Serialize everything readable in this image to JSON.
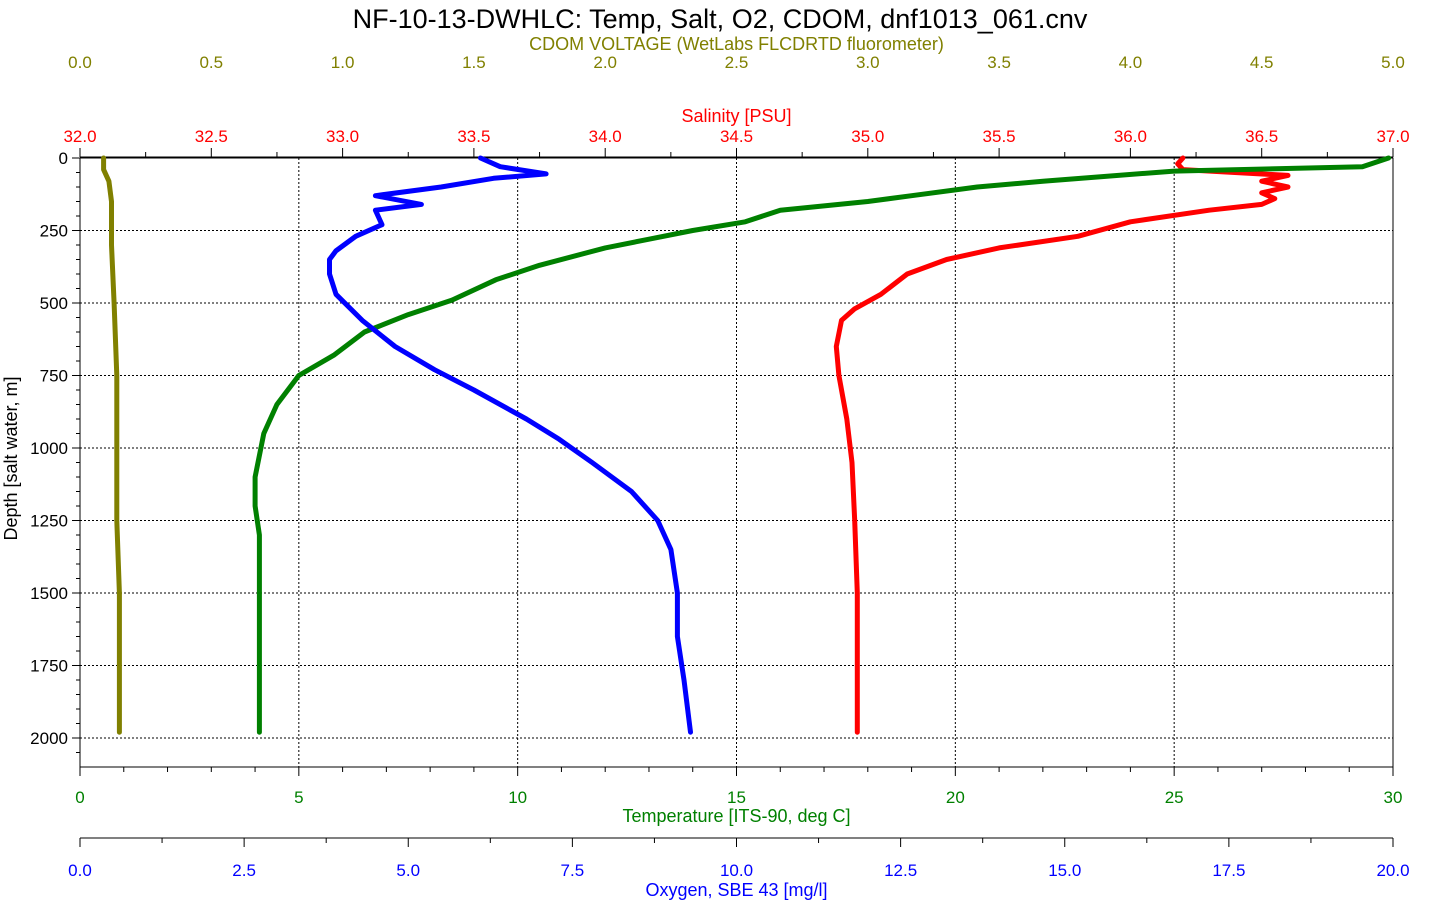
{
  "chart_data": {
    "type": "line",
    "title": "NF-10-13-DWHLC: Temp, Salt, O2, CDOM, dnf1013_061.cnv",
    "y_axis": {
      "label": "Depth [salt water, m]",
      "range": [
        2100,
        0
      ],
      "ticks": [
        "0",
        "250",
        "500",
        "750",
        "1000",
        "1250",
        "1500",
        "1750",
        "2000"
      ],
      "tick_values": [
        0,
        250,
        500,
        750,
        1000,
        1250,
        1500,
        1750,
        2000
      ],
      "grid": true
    },
    "x_axes": [
      {
        "id": "cdom",
        "label": "CDOM VOLTAGE (WetLabs FLCDRTD fluorometer)",
        "position": "top",
        "range": [
          0,
          5
        ],
        "ticks": [
          "0.0",
          "0.5",
          "1.0",
          "1.5",
          "2.0",
          "2.5",
          "3.0",
          "3.5",
          "4.0",
          "4.5",
          "5.0"
        ],
        "color": "#808000"
      },
      {
        "id": "salinity",
        "label": "Salinity [PSU]",
        "position": "top",
        "range": [
          32,
          37
        ],
        "ticks": [
          "32.0",
          "32.5",
          "33.0",
          "33.5",
          "34.0",
          "34.5",
          "35.0",
          "35.5",
          "36.0",
          "36.5",
          "37.0"
        ],
        "color": "#ff0000"
      },
      {
        "id": "temperature",
        "label": "Temperature [ITS-90, deg C]",
        "position": "bottom",
        "range": [
          0,
          30
        ],
        "ticks": [
          "0",
          "5",
          "10",
          "15",
          "20",
          "25",
          "30"
        ],
        "color": "#008000",
        "grid": true
      },
      {
        "id": "oxygen",
        "label": "Oxygen, SBE 43 [mg/l]",
        "position": "bottom",
        "range": [
          0,
          20
        ],
        "ticks": [
          "0.0",
          "2.5",
          "5.0",
          "7.5",
          "10.0",
          "12.5",
          "15.0",
          "17.5",
          "20.0"
        ],
        "color": "#0000ff"
      }
    ],
    "series": [
      {
        "name": "CDOM VOLTAGE (WetLabs FLCDRTD fluorometer)",
        "axis": "cdom",
        "color": "#808000",
        "points": [
          [
            0.09,
            0
          ],
          [
            0.09,
            40
          ],
          [
            0.11,
            80
          ],
          [
            0.12,
            150
          ],
          [
            0.12,
            300
          ],
          [
            0.13,
            500
          ],
          [
            0.14,
            750
          ],
          [
            0.14,
            1000
          ],
          [
            0.14,
            1250
          ],
          [
            0.15,
            1500
          ],
          [
            0.15,
            1750
          ],
          [
            0.15,
            1980
          ]
        ]
      },
      {
        "name": "Salinity [PSU]",
        "axis": "salinity",
        "color": "#ff0000",
        "points": [
          [
            36.2,
            0
          ],
          [
            36.18,
            20
          ],
          [
            36.2,
            40
          ],
          [
            36.6,
            60
          ],
          [
            36.5,
            80
          ],
          [
            36.6,
            100
          ],
          [
            36.5,
            120
          ],
          [
            36.55,
            140
          ],
          [
            36.5,
            160
          ],
          [
            36.3,
            180
          ],
          [
            36.0,
            220
          ],
          [
            35.8,
            270
          ],
          [
            35.5,
            310
          ],
          [
            35.3,
            350
          ],
          [
            35.15,
            400
          ],
          [
            35.05,
            470
          ],
          [
            34.95,
            520
          ],
          [
            34.9,
            560
          ],
          [
            34.88,
            650
          ],
          [
            34.89,
            750
          ],
          [
            34.92,
            900
          ],
          [
            34.94,
            1050
          ],
          [
            34.95,
            1250
          ],
          [
            34.96,
            1500
          ],
          [
            34.96,
            1750
          ],
          [
            34.96,
            1980
          ]
        ]
      },
      {
        "name": "Temperature [ITS-90, deg C]",
        "axis": "temperature",
        "color": "#008000",
        "points": [
          [
            29.9,
            0
          ],
          [
            29.3,
            30
          ],
          [
            25.0,
            45
          ],
          [
            22.0,
            80
          ],
          [
            20.5,
            100
          ],
          [
            19.0,
            130
          ],
          [
            18.0,
            150
          ],
          [
            16.0,
            180
          ],
          [
            15.2,
            220
          ],
          [
            14.0,
            250
          ],
          [
            13.0,
            280
          ],
          [
            12.0,
            310
          ],
          [
            10.5,
            370
          ],
          [
            9.5,
            420
          ],
          [
            8.5,
            490
          ],
          [
            7.5,
            540
          ],
          [
            6.5,
            600
          ],
          [
            5.8,
            680
          ],
          [
            5.0,
            750
          ],
          [
            4.5,
            850
          ],
          [
            4.2,
            950
          ],
          [
            4.0,
            1100
          ],
          [
            4.0,
            1200
          ],
          [
            4.1,
            1300
          ],
          [
            4.1,
            1500
          ],
          [
            4.1,
            1750
          ],
          [
            4.1,
            1980
          ]
        ]
      },
      {
        "name": "Oxygen, SBE 43 [mg/l]",
        "axis": "oxygen",
        "color": "#0000ff",
        "points": [
          [
            6.1,
            0
          ],
          [
            6.4,
            30
          ],
          [
            7.1,
            55
          ],
          [
            6.3,
            70
          ],
          [
            5.5,
            100
          ],
          [
            4.5,
            130
          ],
          [
            5.2,
            160
          ],
          [
            4.5,
            180
          ],
          [
            4.6,
            230
          ],
          [
            4.2,
            270
          ],
          [
            3.9,
            320
          ],
          [
            3.8,
            350
          ],
          [
            3.8,
            400
          ],
          [
            3.9,
            470
          ],
          [
            4.3,
            560
          ],
          [
            4.8,
            650
          ],
          [
            5.4,
            730
          ],
          [
            6.0,
            800
          ],
          [
            6.8,
            900
          ],
          [
            7.3,
            970
          ],
          [
            7.8,
            1050
          ],
          [
            8.4,
            1150
          ],
          [
            8.8,
            1250
          ],
          [
            9.0,
            1350
          ],
          [
            9.1,
            1500
          ],
          [
            9.1,
            1650
          ],
          [
            9.2,
            1800
          ],
          [
            9.3,
            1980
          ]
        ]
      }
    ]
  }
}
